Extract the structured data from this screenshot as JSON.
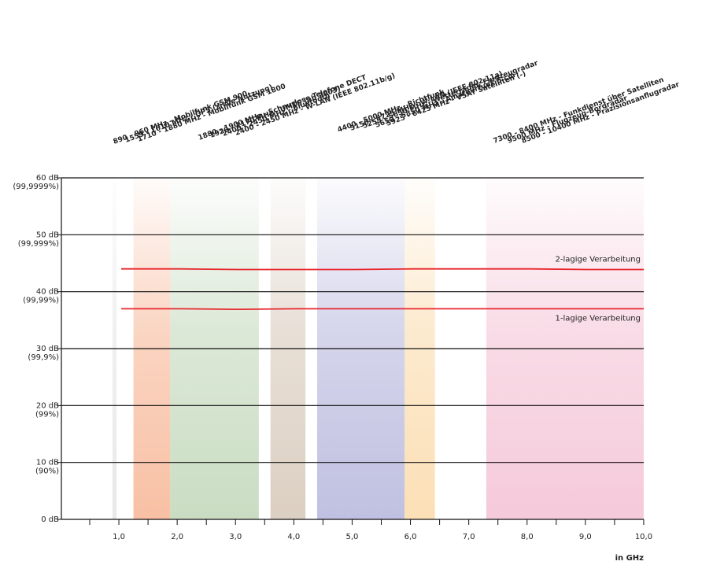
{
  "chart_data": {
    "type": "line",
    "xlim": [
      0,
      10
    ],
    "ylim": [
      0,
      60
    ],
    "x_unit_label": "in GHz",
    "x_ticks": [
      {
        "value": 1,
        "label": "1,0"
      },
      {
        "value": 2,
        "label": "2,0"
      },
      {
        "value": 3,
        "label": "3,0"
      },
      {
        "value": 4,
        "label": "4,0"
      },
      {
        "value": 5,
        "label": "5,0"
      },
      {
        "value": 6,
        "label": "6,0"
      },
      {
        "value": 7,
        "label": "7,0"
      },
      {
        "value": 8,
        "label": "8,0"
      },
      {
        "value": 9,
        "label": "9,0"
      },
      {
        "value": 10,
        "label": "10,0"
      }
    ],
    "y_ticks": [
      {
        "value": 0,
        "label": "0 dB",
        "sublabel": ""
      },
      {
        "value": 10,
        "label": "10 dB",
        "sublabel": "(90%)"
      },
      {
        "value": 20,
        "label": "20 dB",
        "sublabel": "(99%)"
      },
      {
        "value": 30,
        "label": "30 dB",
        "sublabel": "(99,9%)"
      },
      {
        "value": 40,
        "label": "40 dB",
        "sublabel": "(99,99%)"
      },
      {
        "value": 50,
        "label": "50 dB",
        "sublabel": "(99,999%)"
      },
      {
        "value": 60,
        "label": "60 dB",
        "sublabel": "(99,9999%)"
      }
    ],
    "grid": "horizontal",
    "series": [
      {
        "name": "2-lagige Verarbeitung",
        "color": "#e8262c",
        "x": [
          1.0,
          2.0,
          3.0,
          4.0,
          5.0,
          6.0,
          7.0,
          8.0,
          9.0,
          10.0
        ],
        "y": [
          44.0,
          44.0,
          43.9,
          43.9,
          43.9,
          44.0,
          44.0,
          44.0,
          43.9,
          43.9
        ]
      },
      {
        "name": "1-lagige Verarbeitung",
        "color": "#e8262c",
        "x": [
          1.0,
          2.0,
          3.0,
          4.0,
          5.0,
          6.0,
          7.0,
          8.0,
          9.0,
          10.0
        ],
        "y": [
          37.0,
          37.0,
          36.9,
          37.0,
          37.0,
          37.0,
          37.0,
          37.0,
          37.0,
          37.0
        ]
      }
    ],
    "bands": [
      {
        "from": 0.89,
        "to": 0.96,
        "color": "#e6e6e6"
      },
      {
        "from": 1.25,
        "to": 1.88,
        "color": "#f7b99a"
      },
      {
        "from": 1.88,
        "to": 3.4,
        "color": "#c4d9bc"
      },
      {
        "from": 3.6,
        "to": 4.2,
        "color": "#d8cabb"
      },
      {
        "from": 4.4,
        "to": 5.9,
        "color": "#b9b9de"
      },
      {
        "from": 5.9,
        "to": 6.42,
        "color": "#fbdcae"
      },
      {
        "from": 7.3,
        "to": 10.0,
        "color": "#f4c4d6"
      }
    ],
    "band_labels": [
      "890 - 960 MHz - Mobilfunk GSM 900",
      "1559 - 1610 MHz - GPS (zivile Nutzung)",
      "1710 - 1880 MHz - Mobilfunk GSM 1800",
      "1880 - 1900 MHz - Schnurlose Telefone DECT",
      "1920 - 2170 MHz - UMTS (ab 2003)",
      "2400 - 2450 MHz - Bluetooth",
      "2400 - 2450 MHz - W-LAN (IEEE 802.11b/g)",
      "4400 - 5000 MHz - Richtfunk",
      "5150 - 5725 MHz - W-LAN (IEEE 802.11a)",
      "5255 - 5850 MHz - Wetterradar, Flugzeugradar",
      "5650 - 5850 MHz - Amateurfunk 5 cm",
      "5925 - 6425 MHz - VSAT Satelliten (-)",
      "7300 - 8400 MHz - Funkdienst über Satelliten",
      "9500 MHz - Flugzeug-Bordradar",
      "8500 - 10400 MHz - Präzisionsanflugradar"
    ]
  }
}
